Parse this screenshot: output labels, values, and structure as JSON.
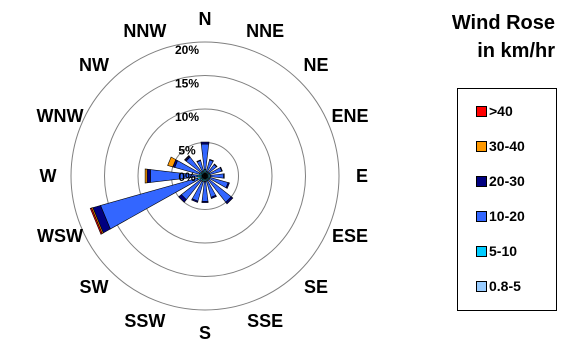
{
  "title_line1": "Wind Rose",
  "title_line2": "in km/hr",
  "chart_data": {
    "type": "wind-rose",
    "directions": [
      "N",
      "NNE",
      "NE",
      "ENE",
      "E",
      "ESE",
      "SE",
      "SSE",
      "S",
      "SSW",
      "SW",
      "WSW",
      "W",
      "WNW",
      "NW",
      "NNW"
    ],
    "ring_labels": [
      "0%",
      "5%",
      "10%",
      "15%",
      "20%"
    ],
    "ring_values": [
      0,
      5,
      10,
      15,
      20
    ],
    "rmax": 20,
    "legend_title": "",
    "series": [
      {
        "name": "0.8-5",
        "color": "#99ccff",
        "values": [
          0.4,
          0.3,
          0.3,
          0.3,
          0.3,
          0.3,
          0.3,
          0.3,
          0.3,
          0.3,
          0.3,
          0.4,
          0.4,
          0.3,
          0.3,
          0.3
        ]
      },
      {
        "name": "5-10",
        "color": "#00ccff",
        "values": [
          0.6,
          0.4,
          0.4,
          0.5,
          0.5,
          0.5,
          0.5,
          0.5,
          0.5,
          0.6,
          0.6,
          0.8,
          0.8,
          0.6,
          0.5,
          0.5
        ]
      },
      {
        "name": "10-20",
        "color": "#3366ff",
        "values": [
          3.8,
          1.8,
          1.5,
          1.8,
          2.0,
          2.8,
          4.2,
          2.5,
          3.0,
          3.0,
          3.6,
          15.0,
          7.0,
          3.8,
          2.8,
          1.6
        ]
      },
      {
        "name": "20-30",
        "color": "#000080",
        "values": [
          0.3,
          0.1,
          0.1,
          0.1,
          0.1,
          0.2,
          0.3,
          0.2,
          0.2,
          0.2,
          0.5,
          1.2,
          0.5,
          0.3,
          0.2,
          0.1
        ]
      },
      {
        "name": "30-40",
        "color": "#ff9900",
        "values": [
          0,
          0,
          0,
          0,
          0,
          0,
          0,
          0,
          0,
          0,
          0,
          0.2,
          0.3,
          0.8,
          0.1,
          0
        ]
      },
      {
        "name": ">40",
        "color": "#ff0000",
        "values": [
          0,
          0,
          0,
          0,
          0,
          0,
          0,
          0,
          0,
          0,
          0,
          0.2,
          0,
          0,
          0,
          0
        ]
      }
    ]
  }
}
